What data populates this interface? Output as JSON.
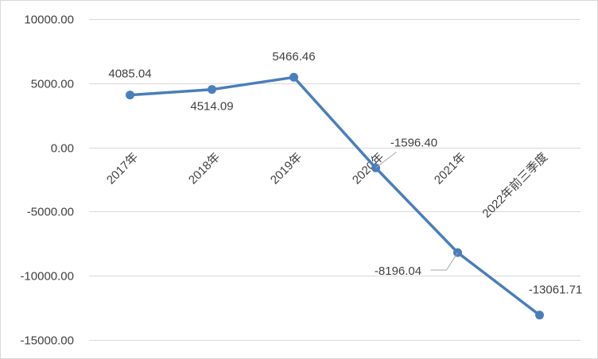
{
  "chart_data": {
    "type": "line",
    "categories": [
      "2017年",
      "2018年",
      "2019年",
      "2020年",
      "2021年",
      "2022年前三季度"
    ],
    "series": [
      {
        "values": [
          4085.04,
          4514.09,
          5466.46,
          -1596.4,
          -8196.04,
          -13061.71
        ]
      }
    ],
    "data_labels": [
      "4085.04",
      "4514.09",
      "5466.46",
      "-1596.40",
      "-8196.04",
      "-13061.71"
    ],
    "y_ticks": [
      "10000.00",
      "5000.00",
      "0.00",
      "-5000.00",
      "-10000.00",
      "-15000.00"
    ],
    "ylim": [
      -15000,
      10000
    ],
    "grid": true,
    "legend": "none",
    "colors": {
      "series": "#4a7ebb",
      "grid": "#d9d9d9",
      "text": "#404040"
    }
  }
}
